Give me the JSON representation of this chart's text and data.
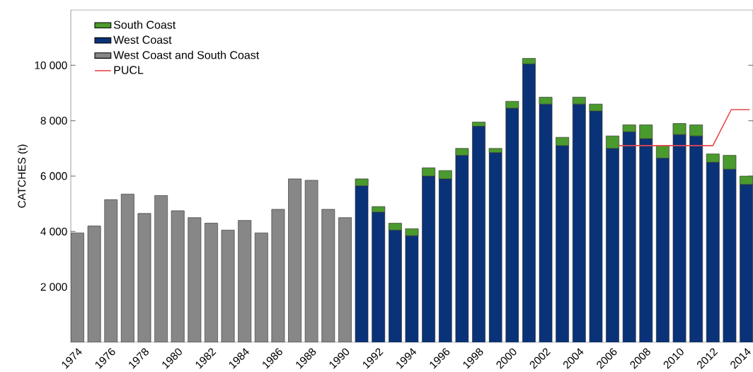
{
  "chart_data": {
    "type": "bar",
    "stacked": true,
    "ylabel": "CATCHES (t)",
    "legend": "top left",
    "x": [
      1974,
      1975,
      1976,
      1977,
      1978,
      1979,
      1980,
      1981,
      1982,
      1983,
      1984,
      1985,
      1986,
      1987,
      1988,
      1989,
      1990,
      1991,
      1992,
      1993,
      1994,
      1995,
      1996,
      1997,
      1998,
      1999,
      2000,
      2001,
      2002,
      2003,
      2004,
      2005,
      2006,
      2007,
      2008,
      2009,
      2010,
      2011,
      2012,
      2013,
      2014
    ],
    "xlim": [
      1973.6,
      2014.4
    ],
    "xticks": [
      1974,
      1976,
      1978,
      1980,
      1982,
      1984,
      1986,
      1988,
      1990,
      1992,
      1994,
      1996,
      1998,
      2000,
      2002,
      2004,
      2006,
      2008,
      2010,
      2012,
      2014
    ],
    "ylim": [
      0,
      12000
    ],
    "yticks": [
      {
        "value": 2000,
        "label": "2 000"
      },
      {
        "value": 4000,
        "label": "4 000"
      },
      {
        "value": 6000,
        "label": "6 000"
      },
      {
        "value": 8000,
        "label": "8 000"
      },
      {
        "value": 10000,
        "label": "10 000"
      }
    ],
    "series": [
      {
        "name": "West Coast and South Coast",
        "color": "#878787",
        "values": [
          3950,
          4200,
          5150,
          5350,
          4650,
          5300,
          4750,
          4500,
          4300,
          4050,
          4400,
          3950,
          4800,
          5900,
          5850,
          4800,
          4500,
          null,
          null,
          null,
          null,
          null,
          null,
          null,
          null,
          null,
          null,
          null,
          null,
          null,
          null,
          null,
          null,
          null,
          null,
          null,
          null,
          null,
          null,
          null,
          null
        ]
      },
      {
        "name": "West Coast",
        "color": "#0a3278",
        "values": [
          null,
          null,
          null,
          null,
          null,
          null,
          null,
          null,
          null,
          null,
          null,
          null,
          null,
          null,
          null,
          null,
          null,
          5650,
          4700,
          4050,
          3850,
          6000,
          5900,
          6750,
          7800,
          6850,
          8450,
          10050,
          8600,
          7100,
          8600,
          8350,
          7000,
          7600,
          7350,
          6650,
          7500,
          7450,
          6500,
          6250,
          5700
        ]
      },
      {
        "name": "South Coast",
        "color": "#4a9a2e",
        "values": [
          null,
          null,
          null,
          null,
          null,
          null,
          null,
          null,
          null,
          null,
          null,
          null,
          null,
          null,
          null,
          null,
          null,
          250,
          200,
          250,
          250,
          300,
          300,
          250,
          150,
          150,
          250,
          200,
          250,
          300,
          250,
          250,
          450,
          250,
          500,
          450,
          400,
          400,
          300,
          500,
          300
        ]
      },
      {
        "name": "PUCL",
        "type": "line",
        "color": "#e8474a",
        "x": [
          2006.4,
          2012,
          2013.1,
          2014.2
        ],
        "values": [
          7100,
          7100,
          8400,
          8400
        ]
      }
    ]
  }
}
